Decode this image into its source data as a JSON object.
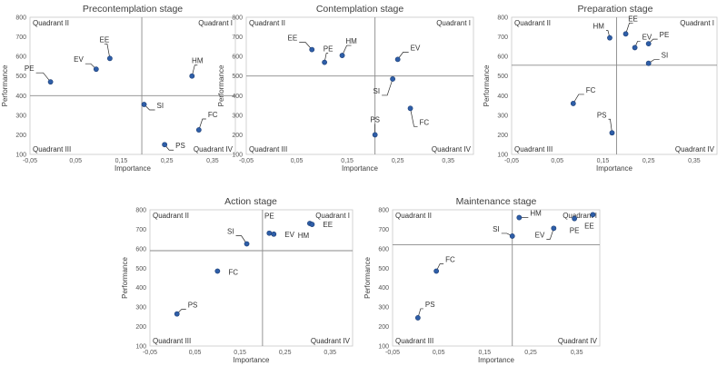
{
  "chart_data": [
    {
      "type": "scatter",
      "title": "Precontemplation stage",
      "xlabel": "Importance",
      "ylabel": "Performance",
      "xlim": [
        -0.05,
        0.4
      ],
      "ylim": [
        100,
        800
      ],
      "xticks": [
        "-0,05",
        "0,05",
        "0,15",
        "0,25",
        "0,35"
      ],
      "yticks": [
        "100",
        "200",
        "300",
        "400",
        "500",
        "600",
        "700",
        "800"
      ],
      "quadrant_split": {
        "x": 0.195,
        "y": 400
      },
      "quadrant_labels": [
        "Quadrant II",
        "Quadrant I",
        "Quadrant III",
        "Quadrant IV"
      ],
      "points": [
        {
          "label": "PE",
          "x": -0.005,
          "y": 470
        },
        {
          "label": "EV",
          "x": 0.095,
          "y": 535
        },
        {
          "label": "EE",
          "x": 0.125,
          "y": 590
        },
        {
          "label": "HM",
          "x": 0.305,
          "y": 500
        },
        {
          "label": "SI",
          "x": 0.2,
          "y": 355
        },
        {
          "label": "FC",
          "x": 0.32,
          "y": 225
        },
        {
          "label": "PS",
          "x": 0.245,
          "y": 150
        }
      ]
    },
    {
      "type": "scatter",
      "title": "Contemplation stage",
      "xlabel": "Importance",
      "ylabel": "Performance",
      "xlim": [
        -0.05,
        0.4
      ],
      "ylim": [
        100,
        800
      ],
      "xticks": [
        "-0,05",
        "0,05",
        "0,15",
        "0,25",
        "0,35"
      ],
      "yticks": [
        "100",
        "200",
        "300",
        "400",
        "500",
        "600",
        "700",
        "800"
      ],
      "quadrant_split": {
        "x": 0.205,
        "y": 500
      },
      "quadrant_labels": [
        "Quadrant II",
        "Quadrant I",
        "Quadrant III",
        "Quadrant IV"
      ],
      "points": [
        {
          "label": "EE",
          "x": 0.08,
          "y": 635
        },
        {
          "label": "PE",
          "x": 0.105,
          "y": 570
        },
        {
          "label": "HM",
          "x": 0.14,
          "y": 605
        },
        {
          "label": "EV",
          "x": 0.25,
          "y": 585
        },
        {
          "label": "SI",
          "x": 0.24,
          "y": 485
        },
        {
          "label": "FC",
          "x": 0.275,
          "y": 335
        },
        {
          "label": "PS",
          "x": 0.205,
          "y": 200
        }
      ]
    },
    {
      "type": "scatter",
      "title": "Preparation stage",
      "xlabel": "Importance",
      "ylabel": "Performance",
      "xlim": [
        -0.05,
        0.4
      ],
      "ylim": [
        100,
        800
      ],
      "xticks": [
        "-0,05",
        "0,05",
        "0,15",
        "0,25",
        "0,35"
      ],
      "yticks": [
        "100",
        "200",
        "300",
        "400",
        "500",
        "600",
        "700",
        "800"
      ],
      "quadrant_split": {
        "x": 0.18,
        "y": 555
      },
      "quadrant_labels": [
        "Quadrant II",
        "Quadrant I",
        "Quadrant III",
        "Quadrant IV"
      ],
      "points": [
        {
          "label": "HM",
          "x": 0.165,
          "y": 695
        },
        {
          "label": "EE",
          "x": 0.2,
          "y": 715
        },
        {
          "label": "EV",
          "x": 0.22,
          "y": 645
        },
        {
          "label": "PE",
          "x": 0.25,
          "y": 665
        },
        {
          "label": "SI",
          "x": 0.25,
          "y": 565
        },
        {
          "label": "FC",
          "x": 0.085,
          "y": 360
        },
        {
          "label": "PS",
          "x": 0.17,
          "y": 210
        }
      ]
    },
    {
      "type": "scatter",
      "title": "Action stage",
      "xlabel": "Importance",
      "ylabel": "Performance",
      "xlim": [
        -0.05,
        0.4
      ],
      "ylim": [
        100,
        800
      ],
      "xticks": [
        "-0,05",
        "0,05",
        "0,15",
        "0,25",
        "0,35"
      ],
      "yticks": [
        "100",
        "200",
        "300",
        "400",
        "500",
        "600",
        "700",
        "800"
      ],
      "quadrant_split": {
        "x": 0.2,
        "y": 590
      },
      "quadrant_labels": [
        "Quadrant II",
        "Quadrant I",
        "Quadrant III",
        "Quadrant IV"
      ],
      "points": [
        {
          "label": "SI",
          "x": 0.165,
          "y": 625
        },
        {
          "label": "PE",
          "x": 0.215,
          "y": 680
        },
        {
          "label": "EV",
          "x": 0.225,
          "y": 675
        },
        {
          "label": "HM",
          "x": 0.305,
          "y": 730
        },
        {
          "label": "EE",
          "x": 0.31,
          "y": 725
        },
        {
          "label": "FC",
          "x": 0.1,
          "y": 485
        },
        {
          "label": "PS",
          "x": 0.01,
          "y": 265
        }
      ]
    },
    {
      "type": "scatter",
      "title": "Maintenance stage",
      "xlabel": "Importance",
      "ylabel": "Performance",
      "xlim": [
        -0.05,
        0.4
      ],
      "ylim": [
        100,
        800
      ],
      "xticks": [
        "-0,05",
        "0,05",
        "0,15",
        "0,25",
        "0,35"
      ],
      "yticks": [
        "100",
        "200",
        "300",
        "400",
        "500",
        "600",
        "700",
        "800"
      ],
      "quadrant_split": {
        "x": 0.21,
        "y": 620
      },
      "quadrant_labels": [
        "Quadrant II",
        "Quadrant I",
        "Quadrant III",
        "Quadrant IV"
      ],
      "points": [
        {
          "label": "HM",
          "x": 0.225,
          "y": 760
        },
        {
          "label": "SI",
          "x": 0.21,
          "y": 665
        },
        {
          "label": "EV",
          "x": 0.3,
          "y": 705
        },
        {
          "label": "PE",
          "x": 0.345,
          "y": 755
        },
        {
          "label": "EE",
          "x": 0.385,
          "y": 775
        },
        {
          "label": "FC",
          "x": 0.045,
          "y": 485
        },
        {
          "label": "PS",
          "x": 0.005,
          "y": 245
        }
      ]
    }
  ]
}
